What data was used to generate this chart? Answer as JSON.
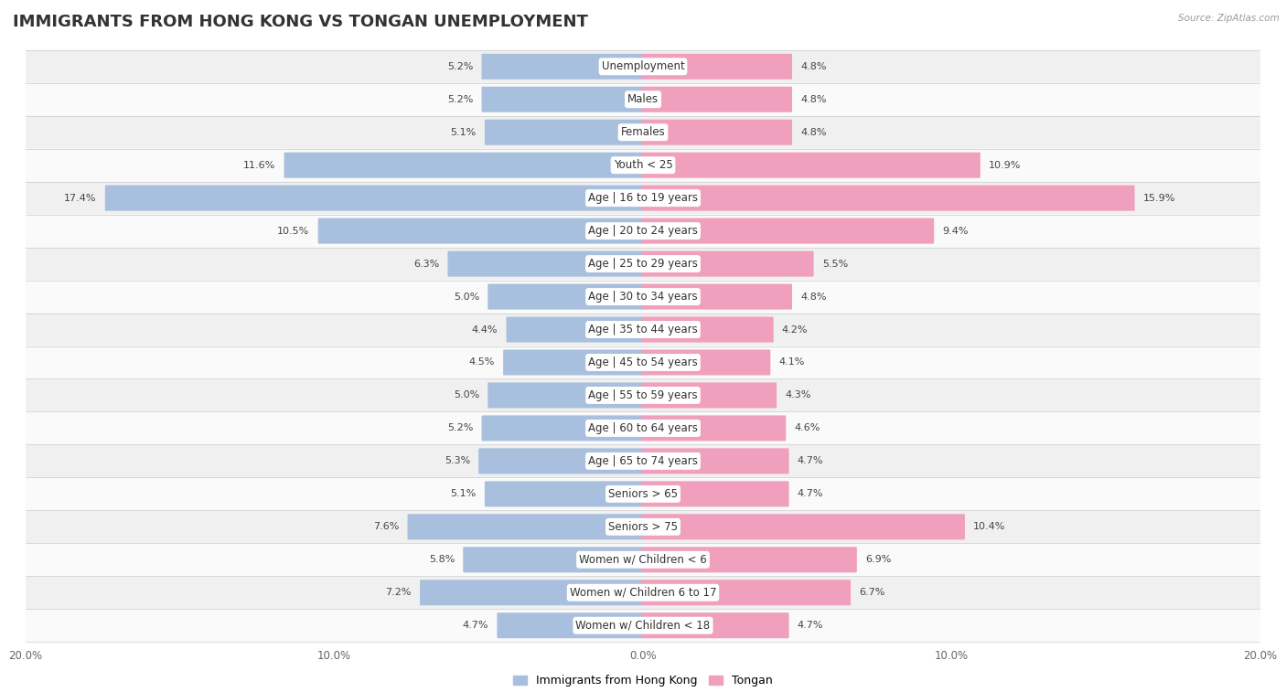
{
  "title": "IMMIGRANTS FROM HONG KONG VS TONGAN UNEMPLOYMENT",
  "source": "Source: ZipAtlas.com",
  "categories": [
    "Unemployment",
    "Males",
    "Females",
    "Youth < 25",
    "Age | 16 to 19 years",
    "Age | 20 to 24 years",
    "Age | 25 to 29 years",
    "Age | 30 to 34 years",
    "Age | 35 to 44 years",
    "Age | 45 to 54 years",
    "Age | 55 to 59 years",
    "Age | 60 to 64 years",
    "Age | 65 to 74 years",
    "Seniors > 65",
    "Seniors > 75",
    "Women w/ Children < 6",
    "Women w/ Children 6 to 17",
    "Women w/ Children < 18"
  ],
  "hk_values": [
    5.2,
    5.2,
    5.1,
    11.6,
    17.4,
    10.5,
    6.3,
    5.0,
    4.4,
    4.5,
    5.0,
    5.2,
    5.3,
    5.1,
    7.6,
    5.8,
    7.2,
    4.7
  ],
  "tongan_values": [
    4.8,
    4.8,
    4.8,
    10.9,
    15.9,
    9.4,
    5.5,
    4.8,
    4.2,
    4.1,
    4.3,
    4.6,
    4.7,
    4.7,
    10.4,
    6.9,
    6.7,
    4.7
  ],
  "hk_color": "#a8c0de",
  "tongan_color": "#f0a0bc",
  "hk_label": "Immigrants from Hong Kong",
  "tongan_label": "Tongan",
  "axis_max": 20.0,
  "bg_color": "#ffffff",
  "row_color_odd": "#f0f0f0",
  "row_color_even": "#fafafa",
  "title_fontsize": 13,
  "label_fontsize": 8.5,
  "value_fontsize": 8,
  "tick_fontsize": 8.5,
  "bar_height": 0.72
}
